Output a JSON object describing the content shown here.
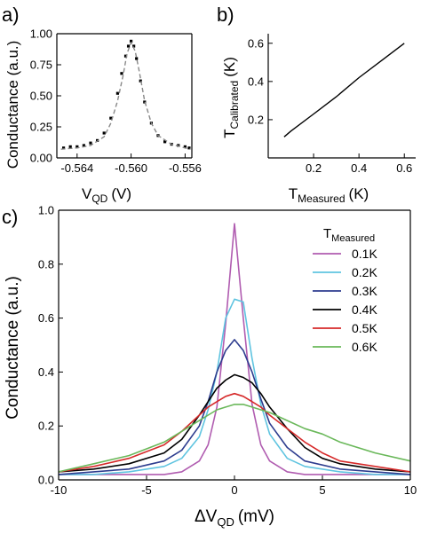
{
  "chart_data": [
    {
      "panel": "a)",
      "type": "scatter",
      "xlabel": "V",
      "xlabel_sub": "QD",
      "xlabel_unit": "(V)",
      "ylabel": "Conductance (a.u.)",
      "xlim": [
        -0.5655,
        -0.5555
      ],
      "ylim": [
        0,
        1.0
      ],
      "xticks": [
        -0.564,
        -0.56,
        -0.556
      ],
      "xtick_labels": [
        "-0.564",
        "-0.560",
        "-0.556"
      ],
      "yticks": [
        0,
        0.25,
        0.5,
        0.75,
        1.0
      ],
      "ytick_labels": [
        "0.00",
        "0.25",
        "0.50",
        "0.75",
        "1.00"
      ],
      "series": [
        {
          "style": "points",
          "color": "#000000",
          "x": [
            -0.565,
            -0.5645,
            -0.564,
            -0.5635,
            -0.563,
            -0.5625,
            -0.562,
            -0.5615,
            -0.561,
            -0.5607,
            -0.5604,
            -0.5602,
            -0.56,
            -0.5598,
            -0.5596,
            -0.5593,
            -0.559,
            -0.5585,
            -0.558,
            -0.5575,
            -0.557,
            -0.5565,
            -0.556,
            -0.5557
          ],
          "y": [
            0.08,
            0.09,
            0.09,
            0.1,
            0.12,
            0.14,
            0.2,
            0.32,
            0.52,
            0.68,
            0.82,
            0.9,
            0.94,
            0.9,
            0.8,
            0.62,
            0.45,
            0.28,
            0.18,
            0.13,
            0.11,
            0.1,
            0.09,
            0.08
          ]
        },
        {
          "style": "dashed",
          "color": "#888888",
          "x": [
            -0.5652,
            -0.564,
            -0.563,
            -0.562,
            -0.5615,
            -0.561,
            -0.5606,
            -0.5603,
            -0.56,
            -0.5597,
            -0.5594,
            -0.559,
            -0.5585,
            -0.558,
            -0.557,
            -0.556,
            -0.5556
          ],
          "y": [
            0.07,
            0.08,
            0.1,
            0.17,
            0.28,
            0.46,
            0.66,
            0.84,
            0.93,
            0.86,
            0.7,
            0.46,
            0.28,
            0.18,
            0.11,
            0.08,
            0.07
          ]
        }
      ]
    },
    {
      "panel": "b)",
      "type": "line",
      "xlabel": "T",
      "xlabel_sub": "Measured",
      "xlabel_unit": "(K)",
      "ylabel": "T",
      "ylabel_sub": "Calibrated",
      "ylabel_unit": "(K)",
      "xlim": [
        0,
        0.65
      ],
      "ylim": [
        0,
        0.65
      ],
      "xticks": [
        0.2,
        0.4,
        0.6
      ],
      "xtick_labels": [
        "0.2",
        "0.4",
        "0.6"
      ],
      "yticks": [
        0.2,
        0.4,
        0.6
      ],
      "ytick_labels": [
        "0.2",
        "0.4",
        "0.6"
      ],
      "series": [
        {
          "color": "#000000",
          "x": [
            0.07,
            0.1,
            0.2,
            0.3,
            0.4,
            0.5,
            0.6
          ],
          "y": [
            0.11,
            0.14,
            0.23,
            0.32,
            0.42,
            0.51,
            0.6
          ]
        }
      ]
    },
    {
      "panel": "c)",
      "type": "line",
      "xlabel": "ΔV",
      "xlabel_sub": "QD",
      "xlabel_unit": "(mV)",
      "ylabel": "Conductance (a.u.)",
      "xlim": [
        -10,
        10
      ],
      "ylim": [
        0,
        1.0
      ],
      "xticks": [
        -10,
        -5,
        0,
        5,
        10
      ],
      "xtick_labels": [
        "-10",
        "-5",
        "0",
        "5",
        "10"
      ],
      "yticks": [
        0,
        0.2,
        0.4,
        0.6,
        0.8,
        1.0
      ],
      "ytick_labels": [
        "0.0",
        "0.2",
        "0.4",
        "0.6",
        "0.8",
        "1.0"
      ],
      "legend_title": "T",
      "legend_title_sub": "Measured",
      "legend_position": "top-right",
      "series": [
        {
          "name": "0.1K",
          "color": "#b05cb0",
          "x": [
            -10,
            -8,
            -6,
            -4,
            -3,
            -2,
            -1.5,
            -1,
            -0.5,
            0,
            0.5,
            1,
            1.5,
            2,
            3,
            4,
            6,
            8,
            10
          ],
          "y": [
            0.02,
            0.02,
            0.02,
            0.02,
            0.03,
            0.07,
            0.13,
            0.27,
            0.58,
            0.95,
            0.6,
            0.28,
            0.13,
            0.07,
            0.03,
            0.02,
            0.02,
            0.02,
            0.02
          ]
        },
        {
          "name": "0.2K",
          "color": "#5fc4e0",
          "x": [
            -10,
            -8,
            -6,
            -4,
            -3,
            -2,
            -1.5,
            -1,
            -0.5,
            0,
            0.5,
            1,
            1.5,
            2,
            3,
            4,
            6,
            8,
            10
          ],
          "y": [
            0.02,
            0.02,
            0.03,
            0.05,
            0.08,
            0.16,
            0.26,
            0.4,
            0.6,
            0.67,
            0.66,
            0.45,
            0.28,
            0.17,
            0.08,
            0.05,
            0.03,
            0.02,
            0.02
          ]
        },
        {
          "name": "0.3K",
          "color": "#2e3d8f",
          "x": [
            -10,
            -8,
            -6,
            -4,
            -3,
            -2,
            -1.5,
            -1,
            -0.5,
            0,
            0.5,
            1,
            1.5,
            2,
            3,
            4,
            6,
            8,
            10
          ],
          "y": [
            0.02,
            0.03,
            0.04,
            0.07,
            0.11,
            0.2,
            0.29,
            0.4,
            0.48,
            0.52,
            0.48,
            0.4,
            0.3,
            0.21,
            0.12,
            0.07,
            0.04,
            0.03,
            0.02
          ]
        },
        {
          "name": "0.4K",
          "color": "#000000",
          "x": [
            -10,
            -8,
            -6,
            -4,
            -3,
            -2,
            -1.5,
            -1,
            -0.5,
            0,
            0.5,
            1,
            1.5,
            2,
            3,
            4,
            5,
            6,
            8,
            10
          ],
          "y": [
            0.03,
            0.04,
            0.06,
            0.1,
            0.15,
            0.24,
            0.29,
            0.34,
            0.37,
            0.39,
            0.38,
            0.36,
            0.32,
            0.27,
            0.19,
            0.12,
            0.08,
            0.06,
            0.04,
            0.03
          ]
        },
        {
          "name": "0.5K",
          "color": "#d62a2a",
          "x": [
            -10,
            -8,
            -6,
            -4,
            -3,
            -2,
            -1.5,
            -1,
            -0.5,
            0,
            0.5,
            1,
            1.5,
            2,
            3,
            4,
            5,
            6,
            8,
            10
          ],
          "y": [
            0.03,
            0.05,
            0.08,
            0.13,
            0.18,
            0.24,
            0.27,
            0.29,
            0.31,
            0.32,
            0.31,
            0.29,
            0.27,
            0.24,
            0.19,
            0.14,
            0.1,
            0.07,
            0.05,
            0.03
          ]
        },
        {
          "name": "0.6K",
          "color": "#6ab85a",
          "x": [
            -10,
            -8,
            -6,
            -4,
            -3,
            -2,
            -1.5,
            -1,
            -0.5,
            0,
            0.5,
            1,
            1.5,
            2,
            3,
            4,
            5,
            6,
            8,
            10
          ],
          "y": [
            0.03,
            0.06,
            0.09,
            0.14,
            0.18,
            0.22,
            0.24,
            0.26,
            0.27,
            0.28,
            0.28,
            0.27,
            0.26,
            0.25,
            0.22,
            0.19,
            0.17,
            0.14,
            0.1,
            0.07
          ]
        }
      ]
    }
  ]
}
